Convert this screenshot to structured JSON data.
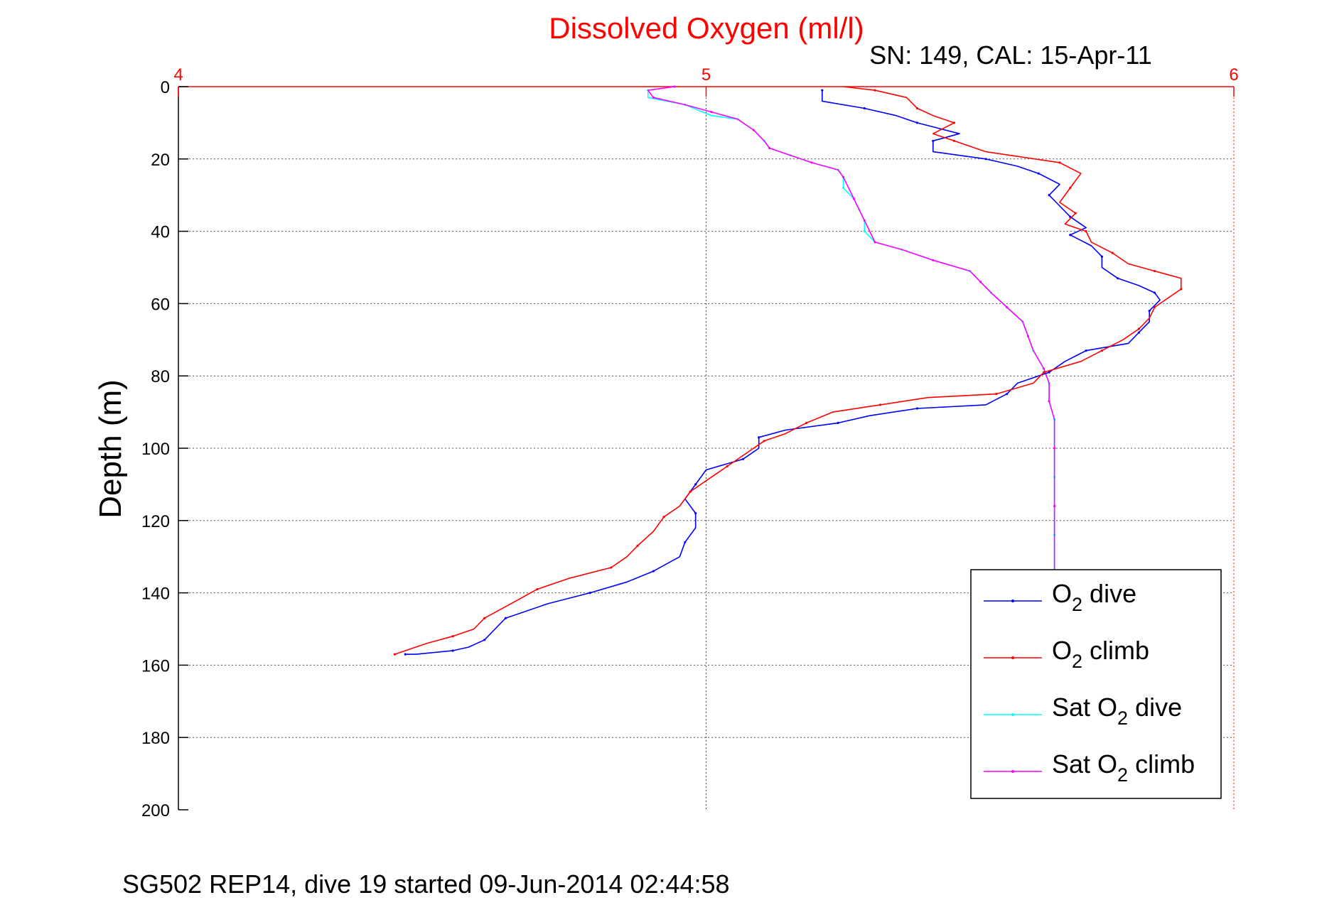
{
  "chart_data": {
    "type": "line",
    "title": "Dissolved Oxygen (ml/l)",
    "subtitle": "SN: 149, CAL: 15-Apr-11",
    "footer": "SG502 REP14, dive 19 started 09-Jun-2014 02:44:58",
    "xlabel": "",
    "ylabel": "Depth (m)",
    "xlim": [
      4,
      6
    ],
    "ylim": [
      0,
      200
    ],
    "y_reversed": true,
    "x_axis_position": "top",
    "xticks": [
      "4",
      "5",
      "6"
    ],
    "yticks": [
      "0",
      "20",
      "40",
      "60",
      "80",
      "100",
      "120",
      "140",
      "160",
      "180",
      "200"
    ],
    "grid": true,
    "legend_position": "bottom-right",
    "colors": {
      "title": "#ff0000",
      "x_axis": "#ff0000",
      "y_axis": "#000000",
      "grid": "#555555"
    },
    "series": [
      {
        "name": "dive",
        "legend_prefix": "O",
        "legend_subscript": "2",
        "color": "#0000ff",
        "points": [
          [
            5.22,
            1
          ],
          [
            5.22,
            4
          ],
          [
            5.3,
            6
          ],
          [
            5.36,
            8
          ],
          [
            5.4,
            10
          ],
          [
            5.48,
            13
          ],
          [
            5.43,
            15
          ],
          [
            5.43,
            18
          ],
          [
            5.53,
            20
          ],
          [
            5.59,
            22
          ],
          [
            5.63,
            24
          ],
          [
            5.67,
            27
          ],
          [
            5.65,
            30
          ],
          [
            5.67,
            33
          ],
          [
            5.69,
            36
          ],
          [
            5.72,
            39
          ],
          [
            5.69,
            41
          ],
          [
            5.73,
            44
          ],
          [
            5.75,
            47
          ],
          [
            5.75,
            50
          ],
          [
            5.78,
            53
          ],
          [
            5.82,
            55
          ],
          [
            5.85,
            57
          ],
          [
            5.86,
            59
          ],
          [
            5.84,
            62
          ],
          [
            5.84,
            65
          ],
          [
            5.82,
            68
          ],
          [
            5.8,
            71
          ],
          [
            5.72,
            73
          ],
          [
            5.68,
            76
          ],
          [
            5.65,
            79
          ],
          [
            5.59,
            82
          ],
          [
            5.57,
            85
          ],
          [
            5.53,
            88
          ],
          [
            5.4,
            89
          ],
          [
            5.31,
            91
          ],
          [
            5.25,
            93
          ],
          [
            5.15,
            95
          ],
          [
            5.1,
            97
          ],
          [
            5.1,
            100
          ],
          [
            5.07,
            103
          ],
          [
            5.0,
            106
          ],
          [
            4.98,
            110
          ],
          [
            4.96,
            114
          ],
          [
            4.98,
            118
          ],
          [
            4.98,
            122
          ],
          [
            4.96,
            126
          ],
          [
            4.95,
            130
          ],
          [
            4.9,
            134
          ],
          [
            4.85,
            137
          ],
          [
            4.78,
            140
          ],
          [
            4.7,
            143
          ],
          [
            4.62,
            147
          ],
          [
            4.6,
            150
          ],
          [
            4.58,
            153
          ],
          [
            4.55,
            155
          ],
          [
            4.52,
            156
          ],
          [
            4.45,
            157
          ],
          [
            4.43,
            157
          ]
        ]
      },
      {
        "name": "climb",
        "legend_prefix": "O",
        "legend_subscript": "2",
        "color": "#ff0000",
        "points": [
          [
            4.41,
            157
          ],
          [
            4.47,
            154
          ],
          [
            4.52,
            152
          ],
          [
            4.56,
            150
          ],
          [
            4.58,
            147
          ],
          [
            4.63,
            143
          ],
          [
            4.68,
            139
          ],
          [
            4.74,
            136
          ],
          [
            4.82,
            133
          ],
          [
            4.85,
            130
          ],
          [
            4.87,
            127
          ],
          [
            4.9,
            123
          ],
          [
            4.92,
            119
          ],
          [
            4.95,
            116
          ],
          [
            4.97,
            112
          ],
          [
            5.01,
            108
          ],
          [
            5.04,
            105
          ],
          [
            5.08,
            101
          ],
          [
            5.11,
            98
          ],
          [
            5.15,
            96
          ],
          [
            5.19,
            93
          ],
          [
            5.24,
            90
          ],
          [
            5.33,
            88
          ],
          [
            5.42,
            86
          ],
          [
            5.55,
            85
          ],
          [
            5.62,
            82
          ],
          [
            5.64,
            79
          ],
          [
            5.71,
            76
          ],
          [
            5.75,
            73
          ],
          [
            5.79,
            70
          ],
          [
            5.82,
            67
          ],
          [
            5.84,
            64
          ],
          [
            5.85,
            61
          ],
          [
            5.88,
            58
          ],
          [
            5.9,
            56
          ],
          [
            5.9,
            53
          ],
          [
            5.85,
            51
          ],
          [
            5.8,
            49
          ],
          [
            5.77,
            46
          ],
          [
            5.73,
            43
          ],
          [
            5.72,
            40
          ],
          [
            5.68,
            38
          ],
          [
            5.7,
            35
          ],
          [
            5.67,
            32
          ],
          [
            5.69,
            28
          ],
          [
            5.71,
            24
          ],
          [
            5.67,
            21
          ],
          [
            5.53,
            18
          ],
          [
            5.47,
            15
          ],
          [
            5.43,
            13
          ],
          [
            5.47,
            10
          ],
          [
            5.43,
            8
          ],
          [
            5.4,
            6
          ],
          [
            5.38,
            3
          ],
          [
            5.32,
            1
          ],
          [
            5.26,
            0
          ]
        ]
      },
      {
        "name": "dive",
        "legend_prefix": "Sat O",
        "legend_subscript": "2",
        "color": "#00ffff",
        "points": [
          [
            4.89,
            1
          ],
          [
            4.89,
            3
          ],
          [
            4.96,
            5
          ],
          [
            5.01,
            8
          ],
          [
            5.06,
            9
          ],
          [
            5.09,
            12
          ],
          [
            5.11,
            15
          ],
          [
            5.12,
            17
          ],
          [
            5.16,
            19
          ],
          [
            5.2,
            21
          ],
          [
            5.25,
            23
          ],
          [
            5.26,
            25
          ],
          [
            5.26,
            28
          ],
          [
            5.28,
            31
          ],
          [
            5.29,
            34
          ],
          [
            5.3,
            37
          ],
          [
            5.3,
            40
          ],
          [
            5.32,
            43
          ],
          [
            5.37,
            45
          ],
          [
            5.43,
            48
          ],
          [
            5.5,
            51
          ],
          [
            5.52,
            54
          ],
          [
            5.54,
            57
          ],
          [
            5.57,
            61
          ],
          [
            5.6,
            65
          ],
          [
            5.61,
            69
          ],
          [
            5.62,
            73
          ],
          [
            5.64,
            78
          ],
          [
            5.65,
            82
          ],
          [
            5.65,
            87
          ],
          [
            5.66,
            92
          ],
          [
            5.66,
            100
          ],
          [
            5.66,
            108
          ],
          [
            5.66,
            116
          ],
          [
            5.66,
            124
          ],
          [
            5.66,
            134
          ]
        ]
      },
      {
        "name": "climb",
        "legend_prefix": "Sat O",
        "legend_subscript": "2",
        "color": "#ff00ff",
        "points": [
          [
            5.66,
            134
          ],
          [
            5.66,
            124
          ],
          [
            5.66,
            116
          ],
          [
            5.66,
            108
          ],
          [
            5.66,
            100
          ],
          [
            5.66,
            92
          ],
          [
            5.65,
            87
          ],
          [
            5.65,
            82
          ],
          [
            5.64,
            78
          ],
          [
            5.62,
            73
          ],
          [
            5.61,
            69
          ],
          [
            5.6,
            65
          ],
          [
            5.57,
            61
          ],
          [
            5.54,
            57
          ],
          [
            5.52,
            54
          ],
          [
            5.5,
            51
          ],
          [
            5.43,
            48
          ],
          [
            5.37,
            45
          ],
          [
            5.32,
            43
          ],
          [
            5.31,
            40
          ],
          [
            5.3,
            37
          ],
          [
            5.29,
            34
          ],
          [
            5.28,
            31
          ],
          [
            5.27,
            28
          ],
          [
            5.26,
            25
          ],
          [
            5.25,
            23
          ],
          [
            5.2,
            21
          ],
          [
            5.16,
            19
          ],
          [
            5.12,
            17
          ],
          [
            5.11,
            15
          ],
          [
            5.09,
            12
          ],
          [
            5.06,
            9
          ],
          [
            5.01,
            7
          ],
          [
            4.96,
            5
          ],
          [
            4.9,
            3
          ],
          [
            4.89,
            1
          ],
          [
            4.94,
            0
          ]
        ]
      }
    ]
  }
}
